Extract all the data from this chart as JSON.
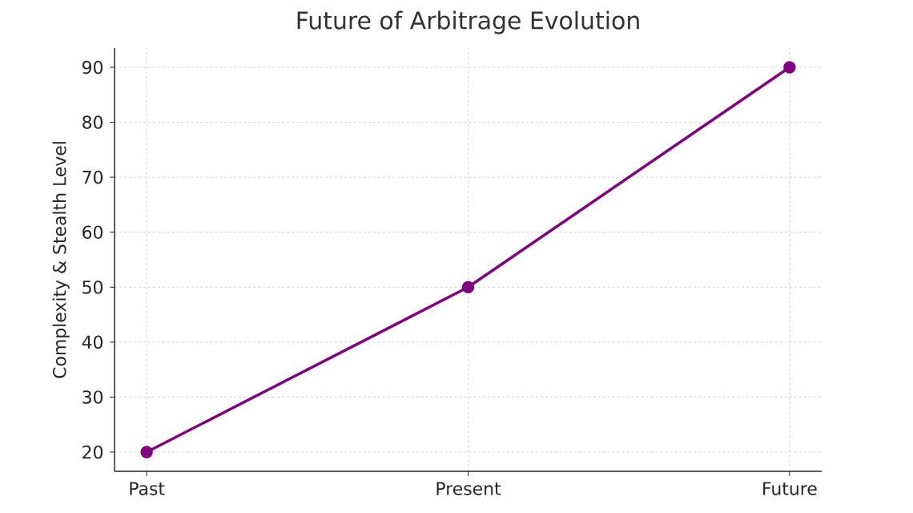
{
  "chart_data": {
    "type": "line",
    "title": "Future of Arbitrage Evolution",
    "ylabel": "Complexity & Stealth Level",
    "categories": [
      "Past",
      "Present",
      "Future"
    ],
    "values": [
      20,
      50,
      90
    ],
    "color": "#800080",
    "ylim": [
      16.5,
      93.5
    ],
    "yticks": [
      20,
      30,
      40,
      50,
      60,
      70,
      80,
      90
    ],
    "grid": true,
    "marker": "circle",
    "line_style": "solid"
  }
}
